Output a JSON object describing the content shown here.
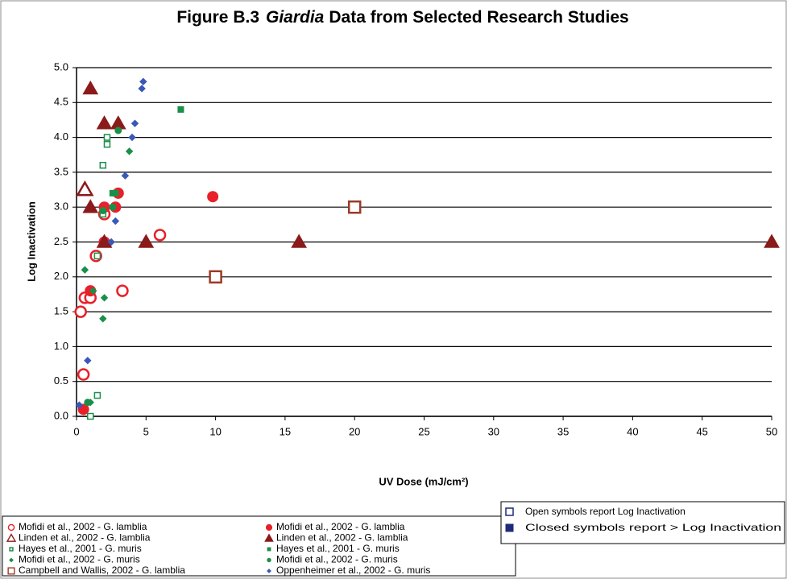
{
  "chart_data": {
    "type": "scatter",
    "title_prefix": "Figure B.3",
    "title_italic": "Giardia",
    "title_suffix": "Data from Selected Research Studies",
    "x_label": "UV Dose (mJ/cm²)",
    "y_label": "Log Inactivation",
    "xlim": [
      0,
      50
    ],
    "xticks": [
      0,
      5,
      10,
      15,
      20,
      25,
      30,
      35,
      40,
      45,
      50
    ],
    "ylim": [
      0,
      5
    ],
    "yticks": [
      {
        "value": 0,
        "label": "0.0"
      },
      {
        "value": 0.5,
        "label": "0.5"
      },
      {
        "value": 1,
        "label": "1.0"
      },
      {
        "value": 1.5,
        "label": "1.5"
      },
      {
        "value": 2,
        "label": "2.0"
      },
      {
        "value": 2.5,
        "label": "2.5"
      },
      {
        "value": 3,
        "label": "3.0"
      },
      {
        "value": 3.5,
        "label": "3.5"
      },
      {
        "value": 4,
        "label": "4.0"
      },
      {
        "value": 4.5,
        "label": "4.5"
      },
      {
        "value": 5,
        "label": "5.0"
      }
    ],
    "grid": true,
    "series": [
      {
        "name": "Mofidi et al., 2002 - G. lamblia",
        "color": "#e8202a",
        "marker": "circle",
        "filled": false,
        "x": [
          0.3,
          0.5,
          0.6,
          1,
          1.4,
          2,
          3.3,
          6
        ],
        "values": [
          1.5,
          0.6,
          1.7,
          1.7,
          2.3,
          2.9,
          1.8,
          2.6
        ]
      },
      {
        "name": "Mofidi et al., 2002 - G. lamblia",
        "color": "#e8202a",
        "marker": "circle",
        "filled": true,
        "x": [
          0.5,
          1,
          2,
          2,
          2.8,
          3,
          9.8
        ],
        "values": [
          0.1,
          1.8,
          2.5,
          3.0,
          3.0,
          3.2,
          3.15
        ]
      },
      {
        "name": "Linden et al., 2002 - G. lamblia",
        "color": "#8b1a1a",
        "marker": "triangle",
        "filled": false,
        "x": [
          0.6
        ],
        "values": [
          3.25
        ]
      },
      {
        "name": "Linden et al., 2002 - G. lamblia",
        "color": "#8b1a1a",
        "marker": "triangle",
        "filled": true,
        "x": [
          1,
          1,
          2,
          2,
          3,
          5,
          16,
          50
        ],
        "values": [
          4.7,
          3.0,
          4.2,
          2.5,
          4.2,
          2.5,
          2.5,
          2.5
        ]
      },
      {
        "name": "Hayes et al., 2001 - G. muris",
        "color": "#1a8f4a",
        "marker": "square-small",
        "filled": false,
        "x": [
          1,
          1.5,
          1.5,
          1.9,
          2.2,
          2.2,
          1.9
        ],
        "values": [
          0.0,
          0.3,
          2.3,
          3.6,
          3.9,
          4.0,
          2.9
        ]
      },
      {
        "name": "Hayes et al., 2001 - G. muris",
        "color": "#1a8f4a",
        "marker": "square-small",
        "filled": true,
        "x": [
          7.5,
          2.8,
          2.6
        ],
        "values": [
          4.4,
          3.2,
          3.2
        ]
      },
      {
        "name": "Mofidi et al., 2002 - G. muris",
        "color": "#1a8f4a",
        "marker": "diamond",
        "filled": true,
        "x": [
          0.6,
          1.2,
          2,
          1.9,
          3.8,
          1
        ],
        "values": [
          2.1,
          1.8,
          1.7,
          1.4,
          3.8,
          0.2
        ]
      },
      {
        "name": "Mofidi et al., 2002 - G. muris",
        "color": "#1a8f4a",
        "marker": "circle-small",
        "filled": true,
        "x": [
          3,
          2.6,
          1.9,
          0.8
        ],
        "values": [
          4.1,
          3.0,
          2.95,
          0.2
        ]
      },
      {
        "name": "Campbell and Wallis, 2002 - G. lamblia",
        "color": "#9b3a26",
        "marker": "square",
        "filled": false,
        "x": [
          10,
          20
        ],
        "values": [
          2.0,
          3.0
        ]
      },
      {
        "name": "Oppenheimer et al., 2002 - G. muris",
        "color": "#3a58b8",
        "marker": "diamond",
        "filled": true,
        "x": [
          0.2,
          0.8,
          4.8,
          4.7,
          4.2,
          4,
          3.5,
          2.8,
          2.5
        ],
        "values": [
          0.16,
          0.8,
          4.8,
          4.7,
          4.2,
          4.0,
          3.45,
          2.8,
          2.5
        ]
      }
    ],
    "symbol_key": {
      "color": "#1f2a7a",
      "open": "Open symbols report Log Inactivation",
      "closed": "Closed symbols report > Log Inactivation"
    }
  }
}
